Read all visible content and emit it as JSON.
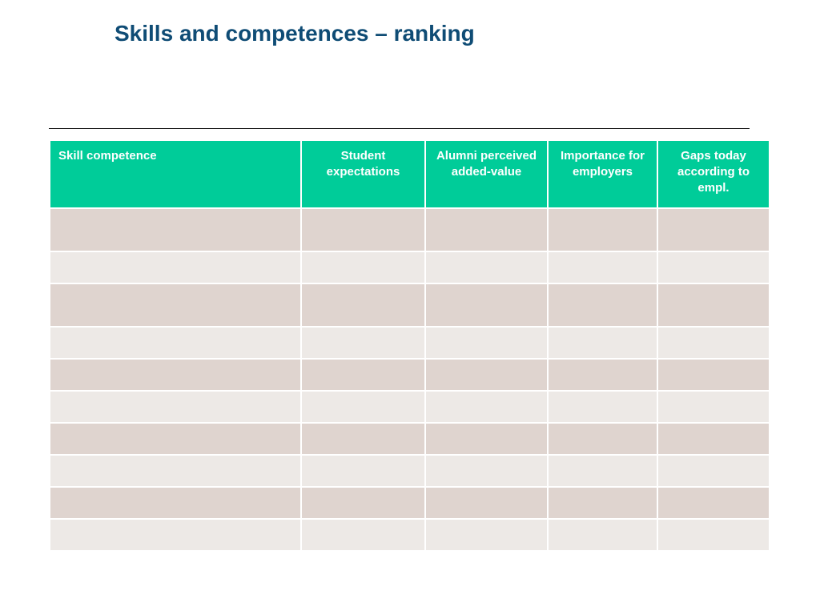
{
  "slide": {
    "title": "Skills and competences – ranking"
  },
  "table": {
    "columns": [
      "Skill competence",
      "Student expectations",
      "Alumni perceived added-value",
      "Importance for employers",
      "Gaps today according to empl."
    ],
    "rows": [
      [
        "",
        "",
        "",
        "",
        ""
      ],
      [
        "",
        "",
        "",
        "",
        ""
      ],
      [
        "",
        "",
        "",
        "",
        ""
      ],
      [
        "",
        "",
        "",
        "",
        ""
      ],
      [
        "",
        "",
        "",
        "",
        ""
      ],
      [
        "",
        "",
        "",
        "",
        ""
      ],
      [
        "",
        "",
        "",
        "",
        ""
      ],
      [
        "",
        "",
        "",
        "",
        ""
      ],
      [
        "",
        "",
        "",
        "",
        ""
      ],
      [
        "",
        "",
        "",
        "",
        ""
      ]
    ]
  },
  "colors": {
    "title": "#0f4c75",
    "header_background": "#00cc99",
    "header_text": "#ffffff",
    "row_dark": "#dfd4cf",
    "row_light": "#ede9e6",
    "rule": "#1a1a1a"
  }
}
